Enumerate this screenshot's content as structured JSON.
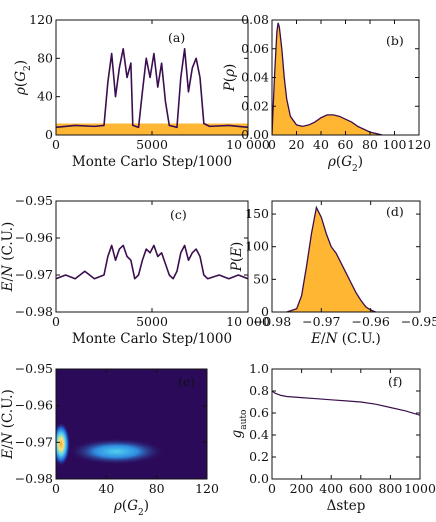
{
  "chart_data": [
    {
      "panel": "a",
      "type": "line",
      "tag": "(a)",
      "xlabel": "Monte Carlo Step/1000",
      "ylabel": "ρ(G₂)",
      "xlim": [
        0,
        10000
      ],
      "ylim": [
        0,
        120
      ],
      "xticks": [
        0,
        5000,
        10000
      ],
      "xtick_labels": [
        "0",
        "5000",
        "10 000"
      ],
      "yticks": [
        0,
        40,
        80,
        120
      ],
      "ytick_labels": [
        "0",
        "40",
        "80",
        "120"
      ],
      "series": [
        {
          "color": "#ffb733",
          "note_values": "baseline band",
          "x": [
            0,
            2500,
            2501,
            4000,
            4300,
            6000,
            6200,
            6800,
            7600,
            10000
          ],
          "y": [
            12,
            12,
            12,
            12,
            12,
            12,
            12,
            12,
            12,
            12
          ]
        },
        {
          "color": "#3b0f4f",
          "x": [
            0,
            1000,
            2000,
            2500,
            2700,
            2900,
            3100,
            3300,
            3500,
            3700,
            3900,
            4000,
            4300,
            4500,
            4700,
            4900,
            5100,
            5300,
            5500,
            5700,
            5900,
            6100,
            6300,
            6500,
            6700,
            6900,
            7100,
            7300,
            7500,
            7700,
            8000,
            9000,
            10000
          ],
          "y": [
            8,
            10,
            9,
            10,
            55,
            85,
            40,
            70,
            90,
            60,
            75,
            10,
            8,
            45,
            80,
            60,
            85,
            50,
            75,
            35,
            10,
            9,
            8,
            60,
            90,
            45,
            70,
            80,
            60,
            12,
            9,
            10,
            8
          ]
        }
      ]
    },
    {
      "panel": "b",
      "type": "area",
      "tag": "(b)",
      "xlabel": "ρ(G₂)",
      "ylabel": "P(ρ)",
      "xlim": [
        0,
        120
      ],
      "ylim": [
        0,
        0.08
      ],
      "xticks": [
        0,
        20,
        40,
        60,
        80,
        100,
        120
      ],
      "xtick_labels": [
        "0",
        "20",
        "40",
        "60",
        "80",
        "100",
        "120"
      ],
      "yticks": [
        0,
        0.02,
        0.04,
        0.06,
        0.08
      ],
      "ytick_labels": [
        "0.00",
        "0.02",
        "0.04",
        "0.06",
        "0.08"
      ],
      "x": [
        0,
        2,
        4,
        5,
        6,
        8,
        10,
        12,
        15,
        20,
        25,
        30,
        35,
        40,
        45,
        50,
        55,
        60,
        65,
        70,
        75,
        80,
        85,
        90
      ],
      "y": [
        0.0,
        0.04,
        0.072,
        0.078,
        0.075,
        0.06,
        0.04,
        0.025,
        0.013,
        0.007,
        0.006,
        0.007,
        0.009,
        0.012,
        0.014,
        0.014,
        0.013,
        0.011,
        0.009,
        0.006,
        0.004,
        0.002,
        0.001,
        0.0
      ]
    },
    {
      "panel": "c",
      "type": "line",
      "tag": "(c)",
      "xlabel": "Monte Carlo Step/1000",
      "ylabel": "E/N (C.U.)",
      "xlim": [
        0,
        10000
      ],
      "ylim": [
        -0.98,
        -0.95
      ],
      "xticks": [
        0,
        5000,
        10000
      ],
      "xtick_labels": [
        "0",
        "5000",
        "10 000"
      ],
      "yticks": [
        -0.98,
        -0.97,
        -0.96,
        -0.95
      ],
      "ytick_labels": [
        "−0.98",
        "−0.97",
        "−0.96",
        "−0.95"
      ],
      "series": [
        {
          "color": "#3b0f4f",
          "x": [
            0,
            500,
            1000,
            1500,
            2000,
            2500,
            2700,
            2900,
            3100,
            3300,
            3500,
            3700,
            3900,
            4100,
            4300,
            4500,
            4700,
            4900,
            5100,
            5300,
            5500,
            5700,
            5900,
            6100,
            6300,
            6500,
            6700,
            6900,
            7100,
            7300,
            7500,
            7700,
            7900,
            8500,
            9000,
            9500,
            10000
          ],
          "y": [
            -0.971,
            -0.97,
            -0.971,
            -0.969,
            -0.971,
            -0.97,
            -0.965,
            -0.962,
            -0.966,
            -0.963,
            -0.962,
            -0.965,
            -0.966,
            -0.971,
            -0.97,
            -0.966,
            -0.963,
            -0.964,
            -0.962,
            -0.965,
            -0.964,
            -0.967,
            -0.97,
            -0.971,
            -0.969,
            -0.964,
            -0.962,
            -0.966,
            -0.964,
            -0.963,
            -0.965,
            -0.97,
            -0.971,
            -0.97,
            -0.971,
            -0.97,
            -0.971
          ]
        }
      ]
    },
    {
      "panel": "d",
      "type": "area",
      "tag": "(d)",
      "xlabel": "E/N (C.U.)",
      "ylabel": "P(E)",
      "xlim": [
        -0.98,
        -0.95
      ],
      "ylim": [
        0,
        170
      ],
      "xticks": [
        -0.98,
        -0.97,
        -0.96,
        -0.95
      ],
      "xtick_labels": [
        "−0.98",
        "−0.97",
        "−0.96",
        "−0.95"
      ],
      "yticks": [
        0,
        50,
        100,
        150
      ],
      "ytick_labels": [
        "0",
        "50",
        "100",
        "150"
      ],
      "x": [
        -0.977,
        -0.975,
        -0.974,
        -0.973,
        -0.972,
        -0.971,
        -0.97,
        -0.969,
        -0.968,
        -0.967,
        -0.966,
        -0.965,
        -0.964,
        -0.963,
        -0.962,
        -0.961,
        -0.96,
        -0.959
      ],
      "y": [
        0,
        5,
        25,
        70,
        120,
        160,
        145,
        120,
        100,
        90,
        75,
        60,
        45,
        30,
        18,
        8,
        3,
        0
      ]
    },
    {
      "panel": "e",
      "type": "heatmap",
      "tag": "(e)",
      "xlabel": "ρ(G₂)",
      "ylabel": "E/N (C.U.)",
      "xlim": [
        0,
        120
      ],
      "ylim": [
        -0.98,
        -0.95
      ],
      "xticks": [
        0,
        40,
        80,
        120
      ],
      "xtick_labels": [
        "0",
        "40",
        "80",
        "120"
      ],
      "yticks": [
        -0.98,
        -0.97,
        -0.96,
        -0.95
      ],
      "ytick_labels": [
        "−0.98",
        "−0.97",
        "−0.96",
        "−0.95"
      ],
      "colors": {
        "background": "#2b0a5a",
        "low": "#1f5fd1",
        "mid": "#4fd1f0",
        "high": "#ffe27a",
        "peak": "#f39a1b"
      },
      "blobs": [
        {
          "x": 4,
          "y": -0.9705,
          "sx": 3,
          "sy": 0.0025,
          "intensity": 1.0
        },
        {
          "x": 48,
          "y": -0.9725,
          "sx": 16,
          "sy": 0.0015,
          "intensity": 0.45
        }
      ]
    },
    {
      "panel": "f",
      "type": "line",
      "tag": "(f)",
      "xlabel": "Δstep",
      "ylabel": "g_auto",
      "xlim": [
        0,
        1000
      ],
      "ylim": [
        0,
        1.0
      ],
      "xticks": [
        0,
        200,
        400,
        600,
        800,
        1000
      ],
      "xtick_labels": [
        "0",
        "200",
        "400",
        "600",
        "800",
        "1000"
      ],
      "yticks": [
        0,
        0.2,
        0.4,
        0.6,
        0.8,
        1.0
      ],
      "ytick_labels": [
        "0.0",
        "0.2",
        "0.4",
        "0.6",
        "0.8",
        "1.0"
      ],
      "series": [
        {
          "color": "#3b0f4f",
          "x": [
            0,
            20,
            60,
            100,
            200,
            300,
            400,
            500,
            600,
            700,
            800,
            900,
            1000
          ],
          "y": [
            0.8,
            0.78,
            0.76,
            0.75,
            0.74,
            0.73,
            0.72,
            0.71,
            0.7,
            0.68,
            0.65,
            0.62,
            0.58
          ]
        }
      ]
    }
  ]
}
